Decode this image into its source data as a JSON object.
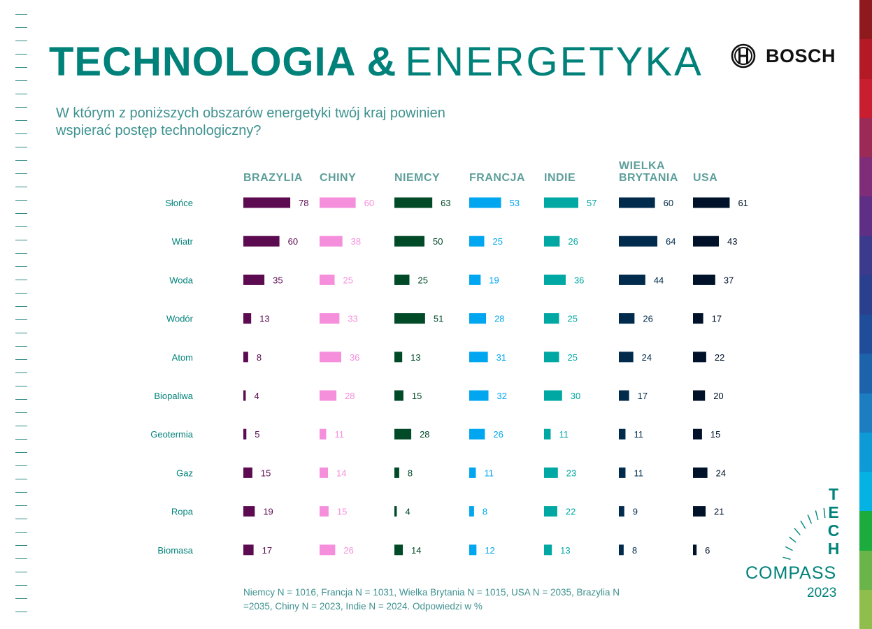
{
  "header": {
    "title_bold": "TECHNOLOGIA &",
    "title_light": "ENERGETYKA",
    "brand": "BOSCH",
    "question": "W którym z poniższych obszarów energetyki twój kraj powinien wspierać postęp technologiczny?"
  },
  "footnote": "Niemcy N = 1016, Francja N = 1031, Wielka Brytania N = 1015, USA N = 2035, Brazylia N =2035, Chiny N = 2023, Indie N = 2024. Odpowiedzi w %",
  "logo": {
    "tech_letters": [
      "T",
      "E",
      "C",
      "H"
    ],
    "compass": "COMPASS",
    "year": "2023",
    "brand_icon": "bosch-armature-icon"
  },
  "chart_data": {
    "type": "bar",
    "orientation": "horizontal",
    "layout": "small-multiples",
    "categories": [
      "Słońce",
      "Wiatr",
      "Woda",
      "Wodór",
      "Atom",
      "Biopaliwa",
      "Geotermia",
      "Gaz",
      "Ropa",
      "Biomasa"
    ],
    "series": [
      {
        "name": "BRAZYLIA",
        "color": "#5c0b50",
        "label_color": "#5c0b50",
        "values": [
          78,
          60,
          35,
          13,
          8,
          4,
          5,
          15,
          19,
          17
        ]
      },
      {
        "name": "CHINY",
        "color": "#f58fdc",
        "label_color": "#f58fdc",
        "values": [
          60,
          38,
          25,
          33,
          36,
          28,
          11,
          14,
          15,
          26
        ]
      },
      {
        "name": "NIEMCY",
        "color": "#004a28",
        "label_color": "#004a28",
        "values": [
          63,
          50,
          25,
          51,
          13,
          15,
          28,
          8,
          4,
          14
        ]
      },
      {
        "name": "FRANCJA",
        "color": "#00a6f0",
        "label_color": "#00a6f0",
        "values": [
          53,
          25,
          19,
          28,
          31,
          32,
          26,
          11,
          8,
          12
        ]
      },
      {
        "name": "INDIE",
        "color": "#00a8a3",
        "label_color": "#00a8a3",
        "values": [
          57,
          26,
          36,
          25,
          25,
          30,
          11,
          23,
          22,
          13
        ]
      },
      {
        "name": "WIELKA BRYTANIA",
        "color": "#002b4c",
        "label_color": "#002b4c",
        "values": [
          60,
          64,
          44,
          26,
          24,
          17,
          11,
          11,
          9,
          8
        ]
      },
      {
        "name": "USA",
        "color": "#001229",
        "label_color": "#001229",
        "values": [
          61,
          43,
          37,
          17,
          22,
          20,
          15,
          24,
          21,
          6
        ]
      }
    ],
    "unit": "%"
  },
  "colors": {
    "accent": "#00827a",
    "text_teal": "#3e9290",
    "header_teal": "#5e9f9b"
  }
}
